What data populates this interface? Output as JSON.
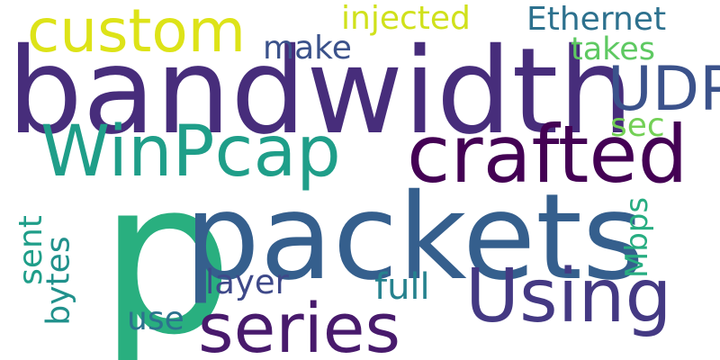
{
  "words": {
    "bandwidth": {
      "text": "bandwidth",
      "color": "#472d7b"
    },
    "custom": {
      "text": "custom",
      "color": "#dde318"
    },
    "injected": {
      "text": "injected",
      "color": "#d0e11c"
    },
    "ethernet": {
      "text": "Ethernet",
      "color": "#2d718e"
    },
    "make": {
      "text": "make",
      "color": "#3b528b"
    },
    "takes": {
      "text": "takes",
      "color": "#5ec962"
    },
    "udp": {
      "text": "UDP",
      "color": "#3b528b"
    },
    "winpcap": {
      "text": "WinPcap",
      "color": "#1f9e89"
    },
    "crafted": {
      "text": "crafted",
      "color": "#440154"
    },
    "sec": {
      "text": "sec",
      "color": "#73d056"
    },
    "p": {
      "text": "p",
      "color": "#29af7f"
    },
    "packets": {
      "text": "packets",
      "color": "#355f8d"
    },
    "sent": {
      "text": "sent",
      "color": "#1f9e89"
    },
    "bytes": {
      "text": "bytes",
      "color": "#21918c"
    },
    "mbps": {
      "text": "Mbps",
      "color": "#27ad81"
    },
    "layer": {
      "text": "layer",
      "color": "#3e4989"
    },
    "full": {
      "text": "full",
      "color": "#26828e"
    },
    "using": {
      "text": "Using",
      "color": "#443983"
    },
    "series": {
      "text": "series",
      "color": "#481a6c"
    },
    "use": {
      "text": "use",
      "color": "#2c728e"
    }
  }
}
